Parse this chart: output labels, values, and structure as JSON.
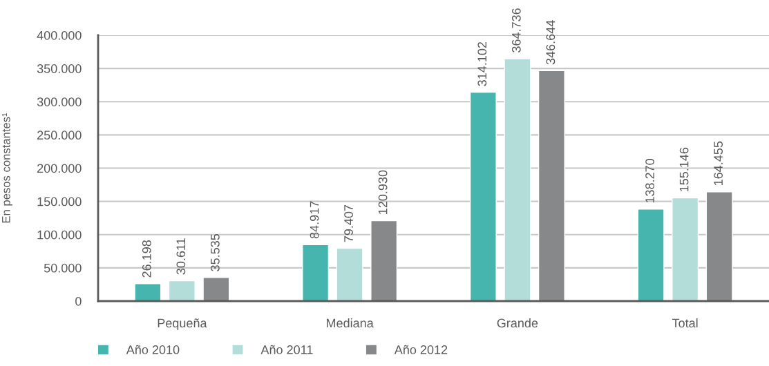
{
  "chart_data": {
    "type": "bar",
    "ylabel": "En pesos constantes¹",
    "categories": [
      "Pequeña",
      "Mediana",
      "Grande",
      "Total"
    ],
    "series": [
      {
        "name": "Año 2010",
        "color": "#45b5ad",
        "values": [
          26198,
          84917,
          314102,
          138270
        ],
        "value_labels": [
          "26.198",
          "84.917",
          "314.102",
          "138.270"
        ]
      },
      {
        "name": "Año 2011",
        "color": "#b3ddd8",
        "values": [
          30611,
          79407,
          364736,
          155146
        ],
        "value_labels": [
          "30.611",
          "79.407",
          "364.736",
          "155.146"
        ]
      },
      {
        "name": "Año 2012",
        "color": "#87888a",
        "values": [
          35535,
          120930,
          346644,
          164455
        ],
        "value_labels": [
          "35.535",
          "120.930",
          "346.644",
          "164.455"
        ]
      }
    ],
    "ylim": [
      0,
      400000
    ],
    "yticks": [
      0,
      {
        "value": 50000,
        "label": "50.000"
      },
      {
        "value": 100000,
        "label": "100.000"
      },
      {
        "value": 150000,
        "label": "150.000"
      },
      {
        "value": 200000,
        "label": "200.000"
      },
      {
        "value": 250000,
        "label": "250.000"
      },
      {
        "value": 300000,
        "label": "300.000"
      },
      {
        "value": 350000,
        "label": "350.000"
      },
      {
        "value": 400000,
        "label": "400.000"
      }
    ],
    "grid": "y",
    "legend": "bottom left"
  }
}
